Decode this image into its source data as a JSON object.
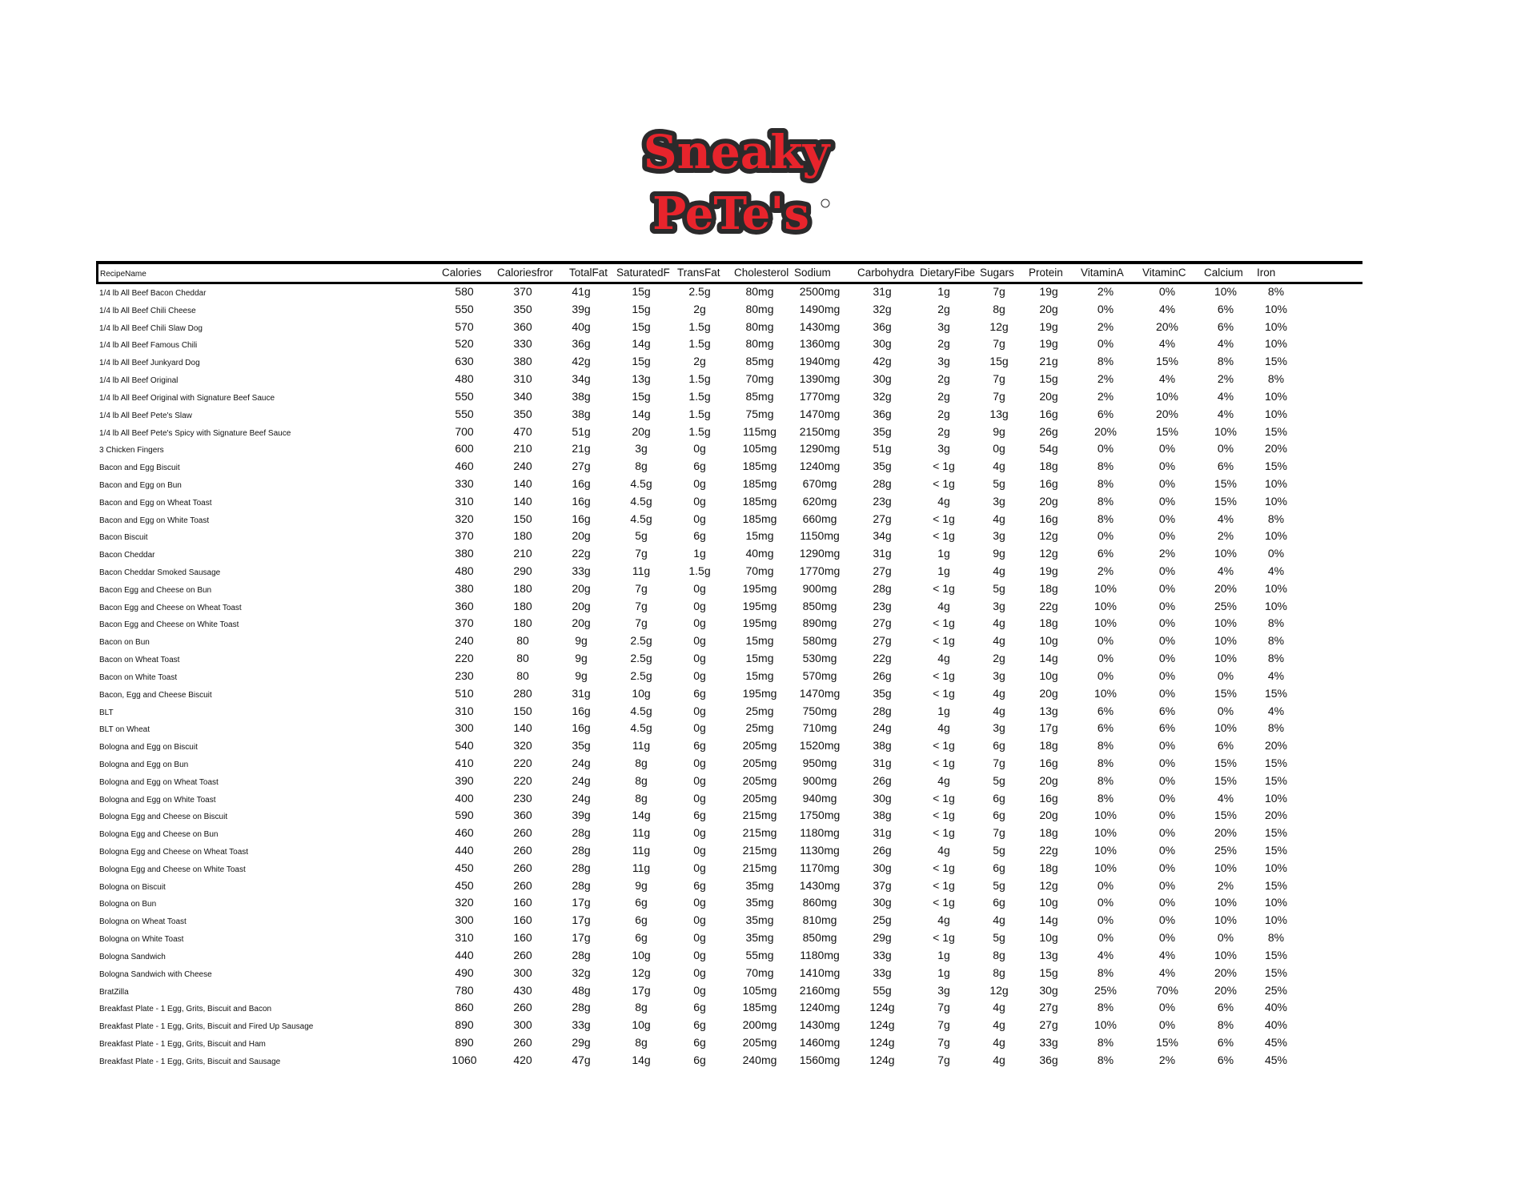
{
  "logo": {
    "line1": "Sneaky",
    "line2": "PeTe's",
    "mark": "®",
    "fill": "#e8242c",
    "outline": "#2b2a2b"
  },
  "headers": [
    "RecipeName",
    "Calories",
    "Caloriesfror",
    "TotalFat",
    "SaturatedF",
    "TransFat",
    "Cholesterol",
    "Sodium",
    "Carbohydra",
    "DietaryFibe",
    "Sugars",
    "Protein",
    "VitaminA",
    "VitaminC",
    "Calcium",
    "Iron"
  ],
  "rows": [
    [
      "1/4 lb All Beef Bacon Cheddar",
      "580",
      "370",
      "41g",
      "15g",
      "2.5g",
      "80mg",
      "2500mg",
      "31g",
      "1g",
      "7g",
      "19g",
      "2%",
      "0%",
      "10%",
      "8%"
    ],
    [
      "1/4 lb All Beef Chili Cheese",
      "550",
      "350",
      "39g",
      "15g",
      "2g",
      "80mg",
      "1490mg",
      "32g",
      "2g",
      "8g",
      "20g",
      "0%",
      "4%",
      "6%",
      "10%"
    ],
    [
      "1/4 lb All Beef Chili Slaw Dog",
      "570",
      "360",
      "40g",
      "15g",
      "1.5g",
      "80mg",
      "1430mg",
      "36g",
      "3g",
      "12g",
      "19g",
      "2%",
      "20%",
      "6%",
      "10%"
    ],
    [
      "1/4 lb All Beef Famous Chili",
      "520",
      "330",
      "36g",
      "14g",
      "1.5g",
      "80mg",
      "1360mg",
      "30g",
      "2g",
      "7g",
      "19g",
      "0%",
      "4%",
      "4%",
      "10%"
    ],
    [
      "1/4 lb All Beef Junkyard Dog",
      "630",
      "380",
      "42g",
      "15g",
      "2g",
      "85mg",
      "1940mg",
      "42g",
      "3g",
      "15g",
      "21g",
      "8%",
      "15%",
      "8%",
      "15%"
    ],
    [
      "1/4 lb All Beef Original",
      "480",
      "310",
      "34g",
      "13g",
      "1.5g",
      "70mg",
      "1390mg",
      "30g",
      "2g",
      "7g",
      "15g",
      "2%",
      "4%",
      "2%",
      "8%"
    ],
    [
      "1/4 lb All Beef Original with Signature Beef Sauce",
      "550",
      "340",
      "38g",
      "15g",
      "1.5g",
      "85mg",
      "1770mg",
      "32g",
      "2g",
      "7g",
      "20g",
      "2%",
      "10%",
      "4%",
      "10%"
    ],
    [
      "1/4 lb All Beef Pete's Slaw",
      "550",
      "350",
      "38g",
      "14g",
      "1.5g",
      "75mg",
      "1470mg",
      "36g",
      "2g",
      "13g",
      "16g",
      "6%",
      "20%",
      "4%",
      "10%"
    ],
    [
      "1/4 lb All Beef Pete's Spicy with Signature Beef Sauce",
      "700",
      "470",
      "51g",
      "20g",
      "1.5g",
      "115mg",
      "2150mg",
      "35g",
      "2g",
      "9g",
      "26g",
      "20%",
      "15%",
      "10%",
      "15%"
    ],
    [
      "3 Chicken Fingers",
      "600",
      "210",
      "21g",
      "3g",
      "0g",
      "105mg",
      "1290mg",
      "51g",
      "3g",
      "0g",
      "54g",
      "0%",
      "0%",
      "0%",
      "20%"
    ],
    [
      "Bacon and Egg Biscuit",
      "460",
      "240",
      "27g",
      "8g",
      "6g",
      "185mg",
      "1240mg",
      "35g",
      "< 1g",
      "4g",
      "18g",
      "8%",
      "0%",
      "6%",
      "15%"
    ],
    [
      "Bacon and Egg on Bun",
      "330",
      "140",
      "16g",
      "4.5g",
      "0g",
      "185mg",
      "670mg",
      "28g",
      "< 1g",
      "5g",
      "16g",
      "8%",
      "0%",
      "15%",
      "10%"
    ],
    [
      "Bacon and Egg on Wheat Toast",
      "310",
      "140",
      "16g",
      "4.5g",
      "0g",
      "185mg",
      "620mg",
      "23g",
      "4g",
      "3g",
      "20g",
      "8%",
      "0%",
      "15%",
      "10%"
    ],
    [
      "Bacon and Egg on White Toast",
      "320",
      "150",
      "16g",
      "4.5g",
      "0g",
      "185mg",
      "660mg",
      "27g",
      "< 1g",
      "4g",
      "16g",
      "8%",
      "0%",
      "4%",
      "8%"
    ],
    [
      "Bacon Biscuit",
      "370",
      "180",
      "20g",
      "5g",
      "6g",
      "15mg",
      "1150mg",
      "34g",
      "< 1g",
      "3g",
      "12g",
      "0%",
      "0%",
      "2%",
      "10%"
    ],
    [
      "Bacon Cheddar",
      "380",
      "210",
      "22g",
      "7g",
      "1g",
      "40mg",
      "1290mg",
      "31g",
      "1g",
      "9g",
      "12g",
      "6%",
      "2%",
      "10%",
      "0%"
    ],
    [
      "Bacon Cheddar Smoked Sausage",
      "480",
      "290",
      "33g",
      "11g",
      "1.5g",
      "70mg",
      "1770mg",
      "27g",
      "1g",
      "4g",
      "19g",
      "2%",
      "0%",
      "4%",
      "4%"
    ],
    [
      "Bacon Egg and Cheese on Bun",
      "380",
      "180",
      "20g",
      "7g",
      "0g",
      "195mg",
      "900mg",
      "28g",
      "< 1g",
      "5g",
      "18g",
      "10%",
      "0%",
      "20%",
      "10%"
    ],
    [
      "Bacon Egg and Cheese on Wheat Toast",
      "360",
      "180",
      "20g",
      "7g",
      "0g",
      "195mg",
      "850mg",
      "23g",
      "4g",
      "3g",
      "22g",
      "10%",
      "0%",
      "25%",
      "10%"
    ],
    [
      "Bacon Egg and Cheese on White Toast",
      "370",
      "180",
      "20g",
      "7g",
      "0g",
      "195mg",
      "890mg",
      "27g",
      "< 1g",
      "4g",
      "18g",
      "10%",
      "0%",
      "10%",
      "8%"
    ],
    [
      "Bacon on Bun",
      "240",
      "80",
      "9g",
      "2.5g",
      "0g",
      "15mg",
      "580mg",
      "27g",
      "< 1g",
      "4g",
      "10g",
      "0%",
      "0%",
      "10%",
      "8%"
    ],
    [
      "Bacon on Wheat Toast",
      "220",
      "80",
      "9g",
      "2.5g",
      "0g",
      "15mg",
      "530mg",
      "22g",
      "4g",
      "2g",
      "14g",
      "0%",
      "0%",
      "10%",
      "8%"
    ],
    [
      "Bacon on White Toast",
      "230",
      "80",
      "9g",
      "2.5g",
      "0g",
      "15mg",
      "570mg",
      "26g",
      "< 1g",
      "3g",
      "10g",
      "0%",
      "0%",
      "0%",
      "4%"
    ],
    [
      "Bacon, Egg and Cheese Biscuit",
      "510",
      "280",
      "31g",
      "10g",
      "6g",
      "195mg",
      "1470mg",
      "35g",
      "< 1g",
      "4g",
      "20g",
      "10%",
      "0%",
      "15%",
      "15%"
    ],
    [
      "BLT",
      "310",
      "150",
      "16g",
      "4.5g",
      "0g",
      "25mg",
      "750mg",
      "28g",
      "1g",
      "4g",
      "13g",
      "6%",
      "6%",
      "0%",
      "4%"
    ],
    [
      "BLT on Wheat",
      "300",
      "140",
      "16g",
      "4.5g",
      "0g",
      "25mg",
      "710mg",
      "24g",
      "4g",
      "3g",
      "17g",
      "6%",
      "6%",
      "10%",
      "8%"
    ],
    [
      "Bologna and Egg on Biscuit",
      "540",
      "320",
      "35g",
      "11g",
      "6g",
      "205mg",
      "1520mg",
      "38g",
      "< 1g",
      "6g",
      "18g",
      "8%",
      "0%",
      "6%",
      "20%"
    ],
    [
      "Bologna and Egg on Bun",
      "410",
      "220",
      "24g",
      "8g",
      "0g",
      "205mg",
      "950mg",
      "31g",
      "< 1g",
      "7g",
      "16g",
      "8%",
      "0%",
      "15%",
      "15%"
    ],
    [
      "Bologna and Egg on Wheat Toast",
      "390",
      "220",
      "24g",
      "8g",
      "0g",
      "205mg",
      "900mg",
      "26g",
      "4g",
      "5g",
      "20g",
      "8%",
      "0%",
      "15%",
      "15%"
    ],
    [
      "Bologna and Egg on White Toast",
      "400",
      "230",
      "24g",
      "8g",
      "0g",
      "205mg",
      "940mg",
      "30g",
      "< 1g",
      "6g",
      "16g",
      "8%",
      "0%",
      "4%",
      "10%"
    ],
    [
      "Bologna Egg and Cheese on Biscuit",
      "590",
      "360",
      "39g",
      "14g",
      "6g",
      "215mg",
      "1750mg",
      "38g",
      "< 1g",
      "6g",
      "20g",
      "10%",
      "0%",
      "15%",
      "20%"
    ],
    [
      "Bologna Egg and Cheese on Bun",
      "460",
      "260",
      "28g",
      "11g",
      "0g",
      "215mg",
      "1180mg",
      "31g",
      "< 1g",
      "7g",
      "18g",
      "10%",
      "0%",
      "20%",
      "15%"
    ],
    [
      "Bologna Egg and Cheese on Wheat Toast",
      "440",
      "260",
      "28g",
      "11g",
      "0g",
      "215mg",
      "1130mg",
      "26g",
      "4g",
      "5g",
      "22g",
      "10%",
      "0%",
      "25%",
      "15%"
    ],
    [
      "Bologna Egg and Cheese on White Toast",
      "450",
      "260",
      "28g",
      "11g",
      "0g",
      "215mg",
      "1170mg",
      "30g",
      "< 1g",
      "6g",
      "18g",
      "10%",
      "0%",
      "10%",
      "10%"
    ],
    [
      "Bologna on Biscuit",
      "450",
      "260",
      "28g",
      "9g",
      "6g",
      "35mg",
      "1430mg",
      "37g",
      "< 1g",
      "5g",
      "12g",
      "0%",
      "0%",
      "2%",
      "15%"
    ],
    [
      "Bologna on Bun",
      "320",
      "160",
      "17g",
      "6g",
      "0g",
      "35mg",
      "860mg",
      "30g",
      "< 1g",
      "6g",
      "10g",
      "0%",
      "0%",
      "10%",
      "10%"
    ],
    [
      "Bologna on Wheat Toast",
      "300",
      "160",
      "17g",
      "6g",
      "0g",
      "35mg",
      "810mg",
      "25g",
      "4g",
      "4g",
      "14g",
      "0%",
      "0%",
      "10%",
      "10%"
    ],
    [
      "Bologna on White Toast",
      "310",
      "160",
      "17g",
      "6g",
      "0g",
      "35mg",
      "850mg",
      "29g",
      "< 1g",
      "5g",
      "10g",
      "0%",
      "0%",
      "0%",
      "8%"
    ],
    [
      "Bologna Sandwich",
      "440",
      "260",
      "28g",
      "10g",
      "0g",
      "55mg",
      "1180mg",
      "33g",
      "1g",
      "8g",
      "13g",
      "4%",
      "4%",
      "10%",
      "15%"
    ],
    [
      "Bologna Sandwich with Cheese",
      "490",
      "300",
      "32g",
      "12g",
      "0g",
      "70mg",
      "1410mg",
      "33g",
      "1g",
      "8g",
      "15g",
      "8%",
      "4%",
      "20%",
      "15%"
    ],
    [
      "BratZilla",
      "780",
      "430",
      "48g",
      "17g",
      "0g",
      "105mg",
      "2160mg",
      "55g",
      "3g",
      "12g",
      "30g",
      "25%",
      "70%",
      "20%",
      "25%"
    ],
    [
      "Breakfast Plate - 1 Egg, Grits, Biscuit and Bacon",
      "860",
      "260",
      "28g",
      "8g",
      "6g",
      "185mg",
      "1240mg",
      "124g",
      "7g",
      "4g",
      "27g",
      "8%",
      "0%",
      "6%",
      "40%"
    ],
    [
      "Breakfast Plate - 1 Egg, Grits, Biscuit and Fired Up Sausage",
      "890",
      "300",
      "33g",
      "10g",
      "6g",
      "200mg",
      "1430mg",
      "124g",
      "7g",
      "4g",
      "27g",
      "10%",
      "0%",
      "8%",
      "40%"
    ],
    [
      "Breakfast Plate - 1 Egg, Grits, Biscuit and Ham",
      "890",
      "260",
      "29g",
      "8g",
      "6g",
      "205mg",
      "1460mg",
      "124g",
      "7g",
      "4g",
      "33g",
      "8%",
      "15%",
      "6%",
      "45%"
    ],
    [
      "Breakfast Plate - 1 Egg, Grits, Biscuit and Sausage",
      "1060",
      "420",
      "47g",
      "14g",
      "6g",
      "240mg",
      "1560mg",
      "124g",
      "7g",
      "4g",
      "36g",
      "8%",
      "2%",
      "6%",
      "45%"
    ]
  ]
}
